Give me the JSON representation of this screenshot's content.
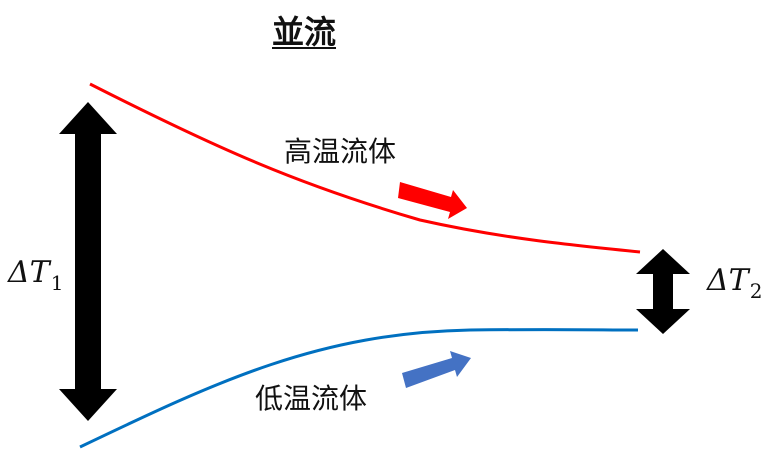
{
  "title": "並流",
  "hot_fluid": {
    "label": "高温流体",
    "color": "#ff0000",
    "arrow_color": "#ff0000"
  },
  "cold_fluid": {
    "label": "低温流体",
    "color": "#0070c0",
    "arrow_color": "#4472c4"
  },
  "delta_t1": {
    "symbol": "ΔT",
    "subscript": "1"
  },
  "delta_t2": {
    "symbol": "ΔT",
    "subscript": "2"
  },
  "arrow_color": "#000000"
}
